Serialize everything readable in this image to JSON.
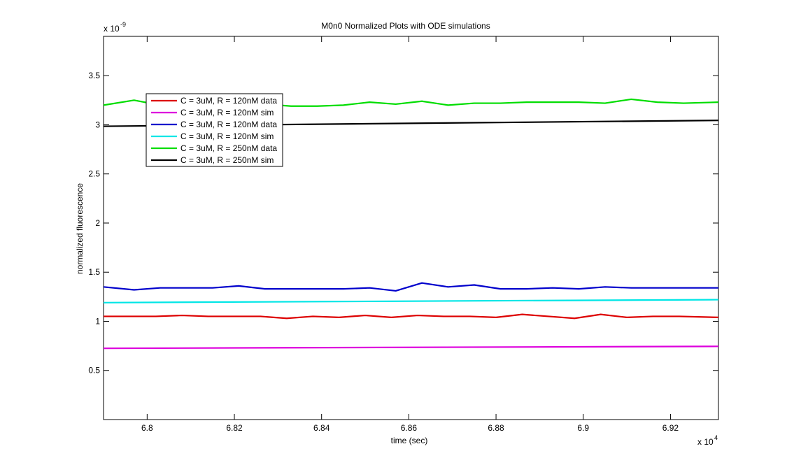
{
  "chart_data": {
    "type": "line",
    "title": "M0n0 Normalized Plots with ODE simulations",
    "xlabel": "time (sec)",
    "ylabel": "normalized fluorescence",
    "x_multiplier": "x 10",
    "x_exponent": "4",
    "y_multiplier": "x 10",
    "y_exponent": "-9",
    "xlim": [
      6.79,
      6.931
    ],
    "ylim": [
      0,
      3.9
    ],
    "xticks": [
      6.8,
      6.82,
      6.84,
      6.86,
      6.88,
      6.9,
      6.92
    ],
    "xtick_labels": [
      "6.8",
      "6.82",
      "6.84",
      "6.86",
      "6.88",
      "6.9",
      "6.92"
    ],
    "yticks": [
      0.5,
      1,
      1.5,
      2,
      2.5,
      3,
      3.5
    ],
    "ytick_labels": [
      "0.5",
      "1",
      "1.5",
      "2",
      "2.5",
      "3",
      "3.5"
    ],
    "grid": false,
    "legend_position": "upper-left",
    "series": [
      {
        "name": "C = 3uM, R = 120nM data",
        "color": "#dd0000",
        "x": [
          6.79,
          6.796,
          6.802,
          6.808,
          6.814,
          6.82,
          6.826,
          6.832,
          6.838,
          6.844,
          6.85,
          6.856,
          6.862,
          6.868,
          6.874,
          6.88,
          6.886,
          6.892,
          6.898,
          6.904,
          6.91,
          6.916,
          6.922,
          6.931
        ],
        "y": [
          1.05,
          1.05,
          1.05,
          1.06,
          1.05,
          1.05,
          1.05,
          1.03,
          1.05,
          1.04,
          1.06,
          1.04,
          1.06,
          1.05,
          1.05,
          1.04,
          1.07,
          1.05,
          1.03,
          1.07,
          1.04,
          1.05,
          1.05,
          1.04
        ]
      },
      {
        "name": "C = 3uM, R = 120nM sim",
        "color": "#dd00dd",
        "x": [
          6.79,
          6.931
        ],
        "y": [
          0.725,
          0.745
        ]
      },
      {
        "name": "C = 3uM, R = 120nM data",
        "color": "#0000cc",
        "x": [
          6.79,
          6.797,
          6.803,
          6.809,
          6.815,
          6.821,
          6.827,
          6.833,
          6.839,
          6.845,
          6.851,
          6.857,
          6.863,
          6.869,
          6.875,
          6.881,
          6.887,
          6.893,
          6.899,
          6.905,
          6.911,
          6.917,
          6.923,
          6.931
        ],
        "y": [
          1.35,
          1.32,
          1.34,
          1.34,
          1.34,
          1.36,
          1.33,
          1.33,
          1.33,
          1.33,
          1.34,
          1.31,
          1.39,
          1.35,
          1.37,
          1.33,
          1.33,
          1.34,
          1.33,
          1.35,
          1.34,
          1.34,
          1.34,
          1.34
        ]
      },
      {
        "name": "C = 3uM, R = 120nM sim",
        "color": "#00e6e6",
        "x": [
          6.79,
          6.931
        ],
        "y": [
          1.19,
          1.22
        ]
      },
      {
        "name": "C = 3uM, R = 250nM data",
        "color": "#00dd00",
        "x": [
          6.79,
          6.797,
          6.803,
          6.809,
          6.815,
          6.821,
          6.827,
          6.833,
          6.839,
          6.845,
          6.851,
          6.857,
          6.863,
          6.869,
          6.875,
          6.881,
          6.887,
          6.893,
          6.899,
          6.905,
          6.911,
          6.917,
          6.923,
          6.931
        ],
        "y": [
          3.2,
          3.25,
          3.2,
          3.21,
          3.2,
          3.2,
          3.21,
          3.19,
          3.19,
          3.2,
          3.23,
          3.21,
          3.24,
          3.2,
          3.22,
          3.22,
          3.23,
          3.23,
          3.23,
          3.22,
          3.26,
          3.23,
          3.22,
          3.23
        ]
      },
      {
        "name": "C = 3uM, R = 250nM sim",
        "color": "#000000",
        "x": [
          6.79,
          6.931
        ],
        "y": [
          2.985,
          3.045
        ]
      }
    ]
  }
}
